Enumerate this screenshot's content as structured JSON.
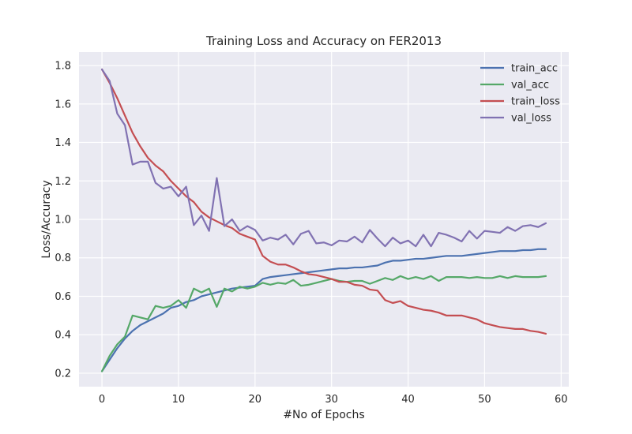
{
  "chart_data": {
    "type": "line",
    "title": "Training Loss and Accuracy on FER2013",
    "xlabel": "#No of Epochs",
    "ylabel": "Loss/Accuracy",
    "xlim": [
      -3,
      61
    ],
    "ylim": [
      0.13,
      1.87
    ],
    "xticks": [
      0,
      10,
      20,
      30,
      40,
      50,
      60
    ],
    "yticks": [
      0.2,
      0.4,
      0.6,
      0.8,
      1.0,
      1.2,
      1.4,
      1.6,
      1.8
    ],
    "ytick_labels": [
      "0.2",
      "0.4",
      "0.6",
      "0.8",
      "1.0",
      "1.2",
      "1.4",
      "1.6",
      "1.8"
    ],
    "grid": true,
    "style": "seaborn-darkgrid",
    "background_color": "#eaeaf2",
    "legend_position": "top-right",
    "x": [
      0,
      1,
      2,
      3,
      4,
      5,
      6,
      7,
      8,
      9,
      10,
      11,
      12,
      13,
      14,
      15,
      16,
      17,
      18,
      19,
      20,
      21,
      22,
      23,
      24,
      25,
      26,
      27,
      28,
      29,
      30,
      31,
      32,
      33,
      34,
      35,
      36,
      37,
      38,
      39,
      40,
      41,
      42,
      43,
      44,
      45,
      46,
      47,
      48,
      49,
      50,
      51,
      52,
      53,
      54,
      55,
      56,
      57,
      58
    ],
    "series": [
      {
        "name": "train_acc",
        "color": "#4c72b0",
        "values": [
          0.21,
          0.27,
          0.33,
          0.38,
          0.42,
          0.45,
          0.47,
          0.49,
          0.51,
          0.54,
          0.55,
          0.57,
          0.58,
          0.6,
          0.61,
          0.62,
          0.63,
          0.64,
          0.645,
          0.65,
          0.655,
          0.69,
          0.7,
          0.705,
          0.71,
          0.715,
          0.72,
          0.725,
          0.73,
          0.735,
          0.74,
          0.745,
          0.745,
          0.75,
          0.75,
          0.755,
          0.76,
          0.775,
          0.785,
          0.785,
          0.79,
          0.795,
          0.795,
          0.8,
          0.805,
          0.81,
          0.81,
          0.81,
          0.815,
          0.82,
          0.825,
          0.83,
          0.835,
          0.835,
          0.835,
          0.84,
          0.84,
          0.845,
          0.845
        ]
      },
      {
        "name": "val_acc",
        "color": "#55a868",
        "values": [
          0.21,
          0.29,
          0.35,
          0.39,
          0.5,
          0.49,
          0.48,
          0.55,
          0.54,
          0.55,
          0.58,
          0.54,
          0.64,
          0.62,
          0.64,
          0.545,
          0.64,
          0.625,
          0.65,
          0.64,
          0.65,
          0.67,
          0.66,
          0.67,
          0.665,
          0.685,
          0.655,
          0.66,
          0.67,
          0.68,
          0.69,
          0.68,
          0.675,
          0.68,
          0.68,
          0.665,
          0.68,
          0.695,
          0.685,
          0.705,
          0.69,
          0.7,
          0.69,
          0.705,
          0.68,
          0.7,
          0.7,
          0.7,
          0.695,
          0.7,
          0.695,
          0.695,
          0.705,
          0.695,
          0.705,
          0.7,
          0.7,
          0.7,
          0.705
        ]
      },
      {
        "name": "train_loss",
        "color": "#c44e52",
        "values": [
          1.78,
          1.71,
          1.63,
          1.54,
          1.45,
          1.38,
          1.32,
          1.28,
          1.25,
          1.2,
          1.16,
          1.12,
          1.09,
          1.04,
          1.01,
          0.99,
          0.97,
          0.955,
          0.925,
          0.91,
          0.895,
          0.81,
          0.78,
          0.765,
          0.765,
          0.75,
          0.73,
          0.715,
          0.71,
          0.7,
          0.69,
          0.675,
          0.675,
          0.66,
          0.655,
          0.635,
          0.63,
          0.58,
          0.565,
          0.575,
          0.55,
          0.54,
          0.53,
          0.525,
          0.515,
          0.5,
          0.5,
          0.5,
          0.49,
          0.48,
          0.46,
          0.45,
          0.44,
          0.435,
          0.43,
          0.43,
          0.42,
          0.415,
          0.405
        ]
      },
      {
        "name": "val_loss",
        "color": "#8172b2",
        "values": [
          1.78,
          1.72,
          1.55,
          1.49,
          1.285,
          1.3,
          1.3,
          1.19,
          1.16,
          1.17,
          1.12,
          1.17,
          0.97,
          1.02,
          0.94,
          1.215,
          0.965,
          1.0,
          0.94,
          0.965,
          0.945,
          0.89,
          0.905,
          0.895,
          0.92,
          0.87,
          0.925,
          0.94,
          0.875,
          0.88,
          0.865,
          0.89,
          0.885,
          0.91,
          0.88,
          0.945,
          0.9,
          0.86,
          0.905,
          0.875,
          0.89,
          0.86,
          0.92,
          0.86,
          0.93,
          0.92,
          0.905,
          0.885,
          0.94,
          0.9,
          0.94,
          0.935,
          0.93,
          0.96,
          0.94,
          0.965,
          0.97,
          0.96,
          0.98
        ]
      }
    ]
  }
}
